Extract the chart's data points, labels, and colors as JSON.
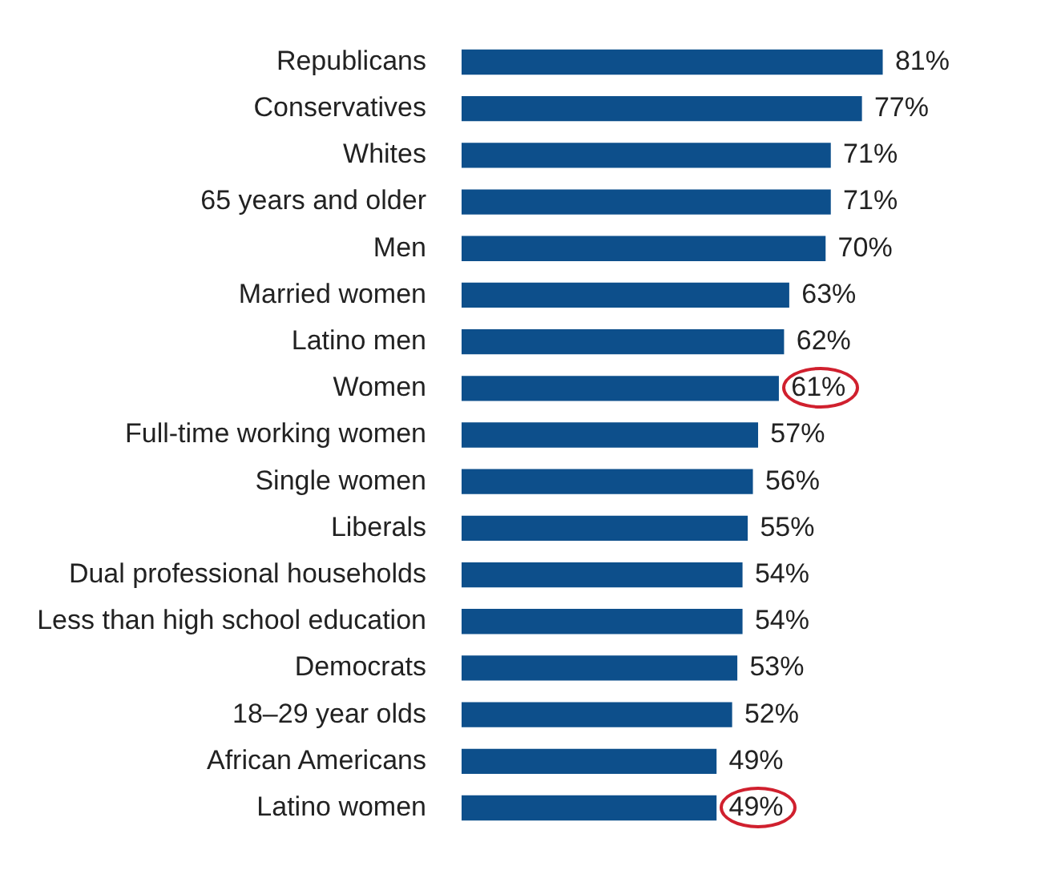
{
  "chart_data": {
    "type": "bar",
    "orientation": "horizontal",
    "categories": [
      "Republicans",
      "Conservatives",
      "Whites",
      "65 years and older",
      "Men",
      "Married women",
      "Latino men",
      "Women",
      "Full-time working women",
      "Single women",
      "Liberals",
      "Dual professional households",
      "Less than high school education",
      "Democrats",
      "18–29 year olds",
      "African Americans",
      "Latino women"
    ],
    "values": [
      81,
      77,
      71,
      71,
      70,
      63,
      62,
      61,
      57,
      56,
      55,
      54,
      54,
      53,
      52,
      49,
      49
    ],
    "value_labels": [
      "81%",
      "77%",
      "71%",
      "71%",
      "70%",
      "63%",
      "62%",
      "61%",
      "57%",
      "56%",
      "55%",
      "54%",
      "54%",
      "53%",
      "52%",
      "49%",
      "49%"
    ],
    "color": "#0d4f8b",
    "legend": false
  }
}
